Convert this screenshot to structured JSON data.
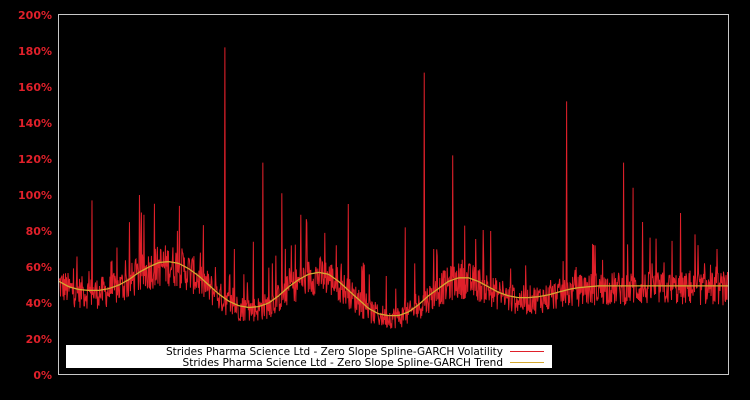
{
  "chart_data": {
    "type": "line",
    "title": "",
    "xlabel": "",
    "ylabel": "",
    "ylim": [
      0,
      200
    ],
    "y_tick_labels": [
      "0%",
      "20%",
      "40%",
      "60%",
      "80%",
      "100%",
      "120%",
      "140%",
      "160%",
      "180%",
      "200%"
    ],
    "y_ticks": [
      0,
      20,
      40,
      60,
      80,
      100,
      120,
      140,
      160,
      180,
      200
    ],
    "grid": false,
    "legend_position": "bottom-left inside",
    "background": "#000000",
    "axis_color": "#c8c8c8",
    "tick_label_color": "#e0202a",
    "x_count": 68,
    "series": [
      {
        "name": "Strides Pharma Science Ltd - Zero Slope Spline-GARCH Volatility",
        "color": "#e0202a",
        "values": [
          52,
          44,
          48,
          97,
          45,
          42,
          50,
          44,
          100,
          46,
          43,
          47,
          58,
          52,
          46,
          55,
          60,
          182,
          70,
          56,
          74,
          118,
          62,
          101,
          72,
          89,
          58,
          54,
          48,
          42,
          95,
          44,
          40,
          37,
          55,
          48,
          82,
          62,
          168,
          70,
          58,
          122,
          64,
          52,
          47,
          80,
          48,
          40,
          34,
          38,
          40,
          30,
          42,
          152,
          60,
          54,
          72,
          46,
          55,
          118,
          104,
          85,
          62,
          55,
          48,
          90,
          58,
          50
        ]
      },
      {
        "name": "Strides Pharma Science Ltd - Zero Slope Spline-GARCH Trend",
        "color": "#d4a830",
        "values": [
          52,
          49,
          47.5,
          47,
          47,
          48,
          50,
          53,
          57,
          60,
          62.5,
          63,
          62,
          59,
          55,
          50,
          45,
          41,
          38.5,
          37.5,
          38,
          40,
          44,
          49,
          53,
          56,
          57,
          56,
          52,
          47,
          42,
          37,
          34,
          33,
          33,
          35,
          39,
          44,
          48,
          52,
          54,
          54,
          52,
          49,
          46,
          44,
          43,
          43,
          43.5,
          44.5,
          46,
          47.5,
          48.5,
          49,
          49.5,
          49.5,
          49.5,
          49.5,
          49.5,
          49.5,
          49.5,
          49.5,
          49.5,
          49.5,
          49.5,
          49.5,
          49.5,
          49.5
        ]
      }
    ]
  },
  "legend": {
    "items": [
      {
        "label": "Strides Pharma Science Ltd - Zero Slope Spline-GARCH Volatility",
        "color": "#e0202a"
      },
      {
        "label": "Strides Pharma Science Ltd - Zero Slope Spline-GARCH Trend",
        "color": "#d4a830"
      }
    ]
  }
}
